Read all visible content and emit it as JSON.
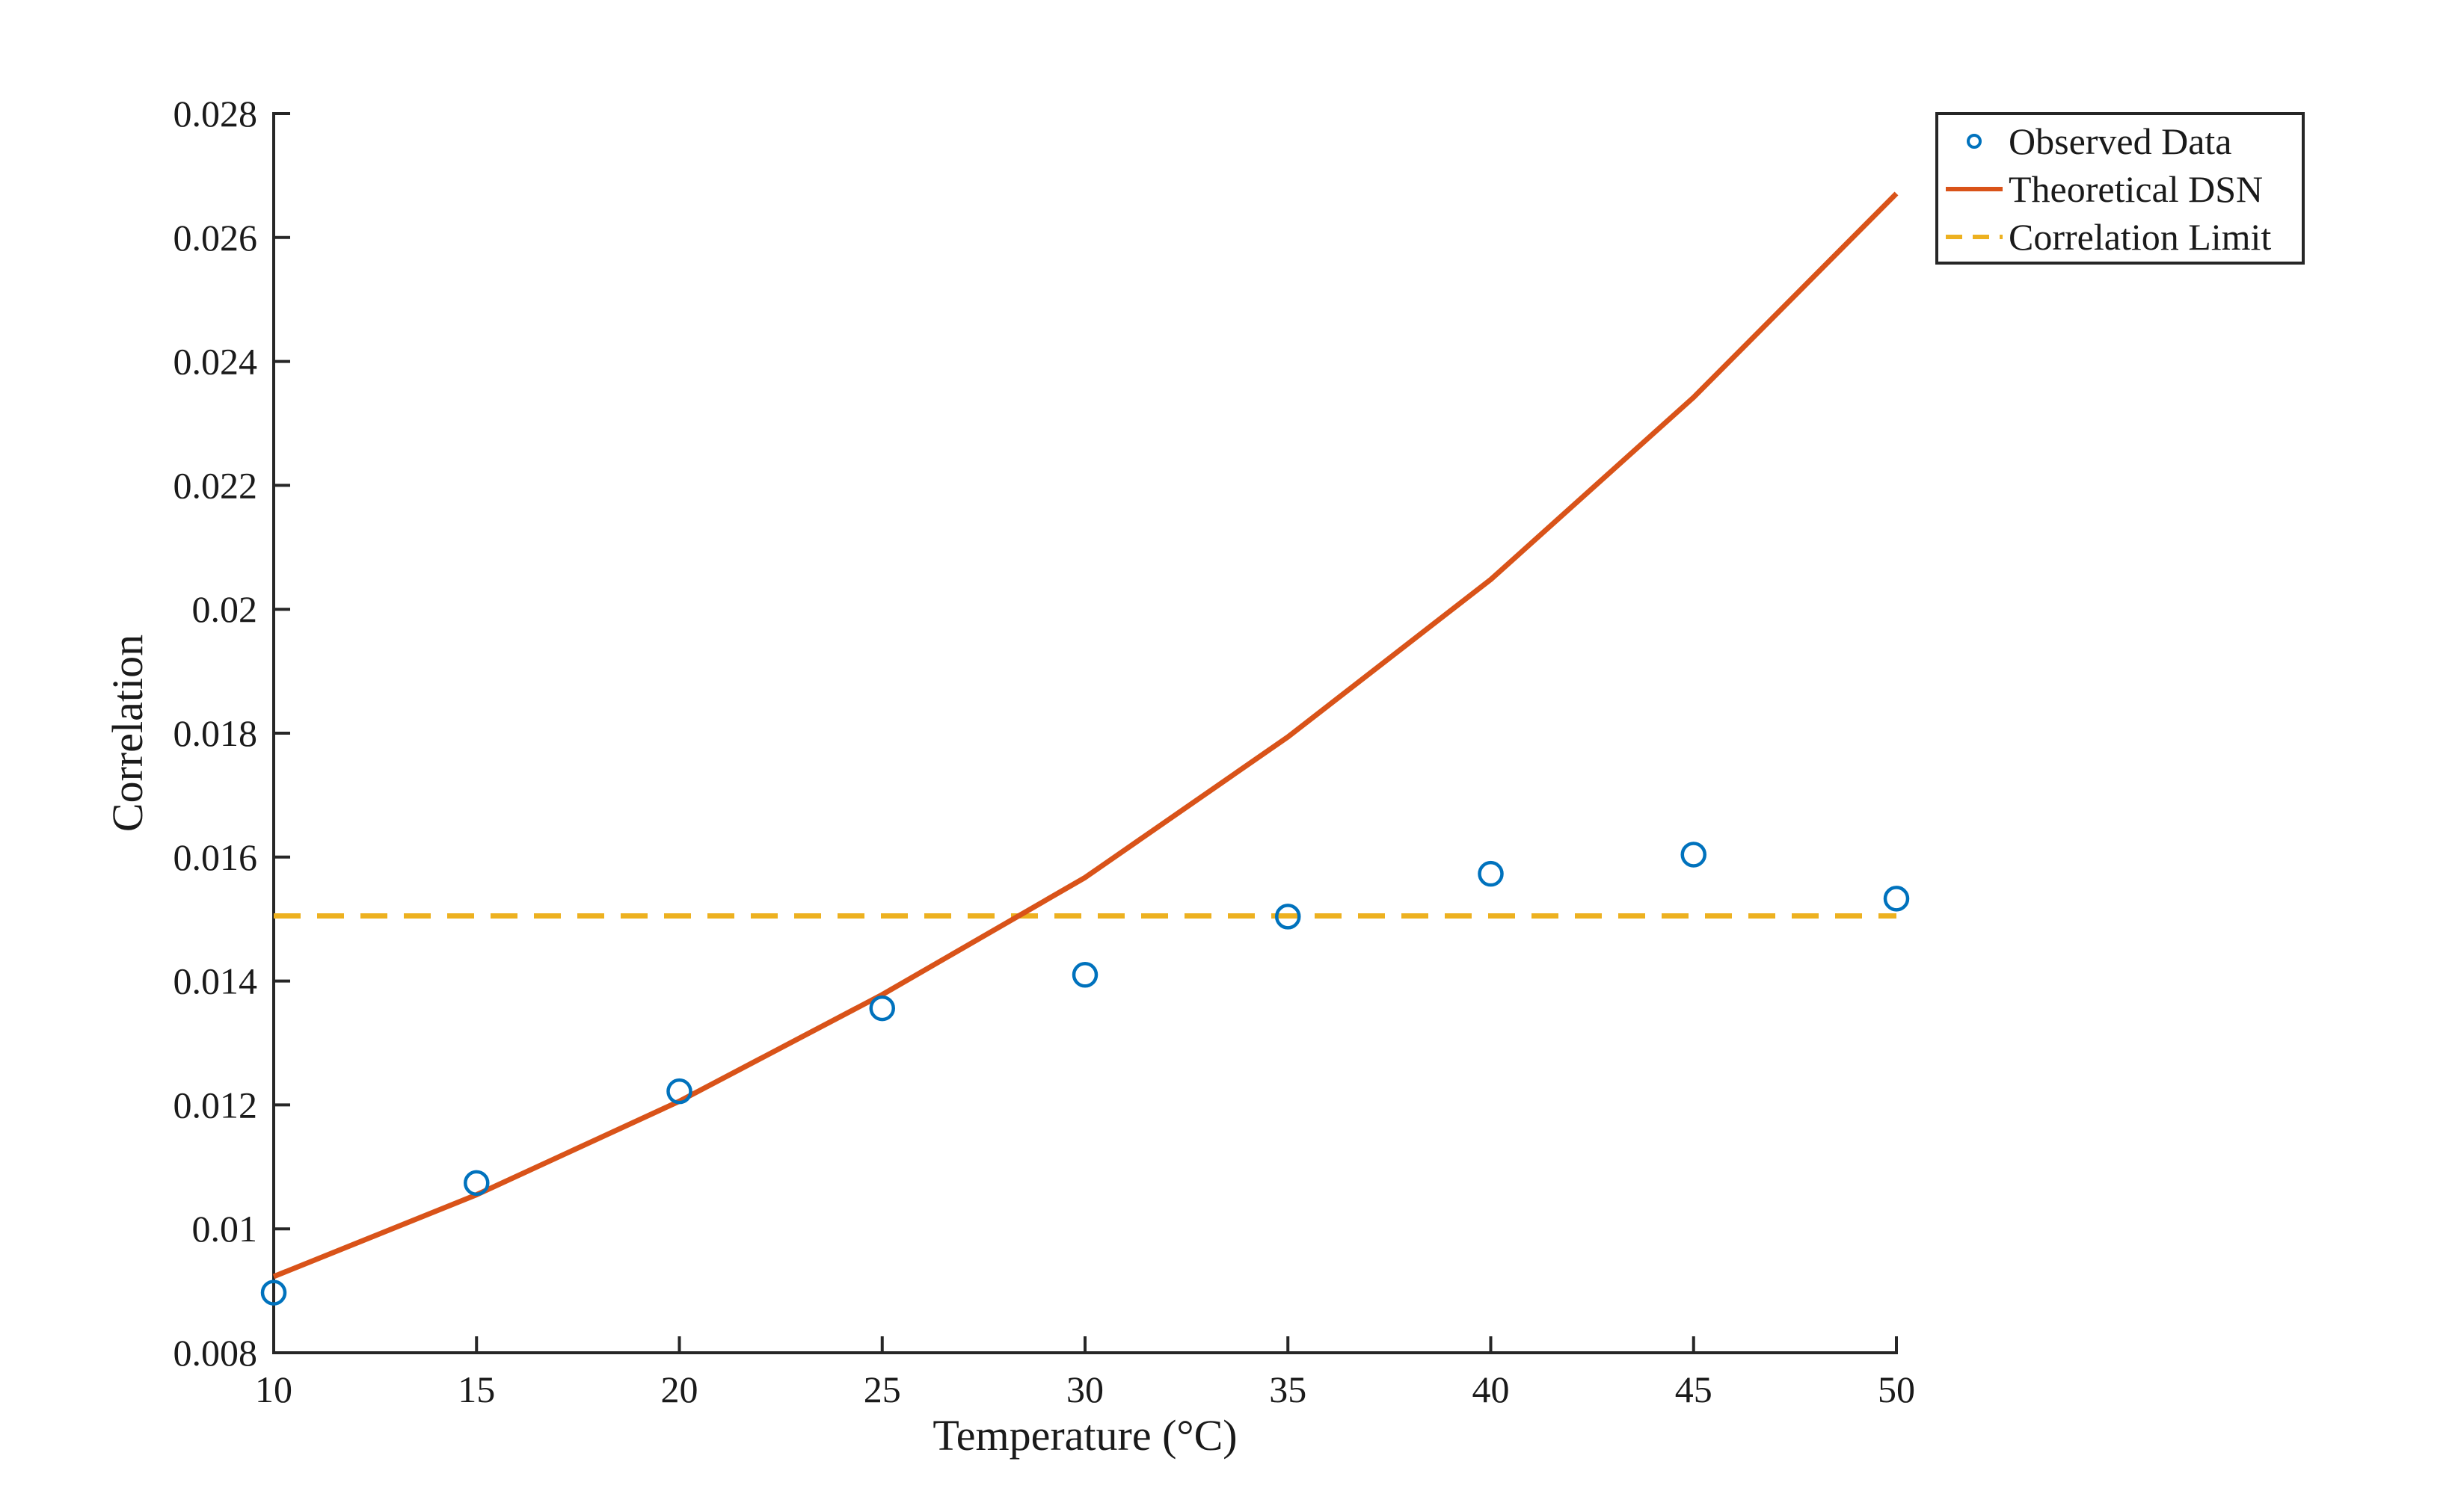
{
  "chart_data": {
    "type": "line",
    "xlabel": "Temperature (°C)",
    "ylabel": "Correlation",
    "xlim": [
      10,
      50
    ],
    "ylim": [
      0.008,
      0.028
    ],
    "xticks": [
      10,
      15,
      20,
      25,
      30,
      35,
      40,
      45,
      50
    ],
    "yticks": [
      0.008,
      0.01,
      0.012,
      0.014,
      0.016,
      0.018,
      0.02,
      0.022,
      0.024,
      0.026,
      0.028
    ],
    "xtick_labels": [
      "10",
      "15",
      "20",
      "25",
      "30",
      "35",
      "40",
      "45",
      "50"
    ],
    "ytick_labels": [
      "0.008",
      "0.01",
      "0.012",
      "0.014",
      "0.016",
      "0.018",
      "0.02",
      "0.022",
      "0.024",
      "0.026",
      "0.028"
    ],
    "grid": false,
    "legend_position": "top-right",
    "series": [
      {
        "name": "Observed Data",
        "style": "markers",
        "marker": "circle",
        "color": "#0072BD",
        "x": [
          10,
          15,
          20,
          25,
          30,
          35,
          40,
          45,
          50
        ],
        "y": [
          0.00897,
          0.01074,
          0.01222,
          0.01356,
          0.0141,
          0.01504,
          0.01573,
          0.01604,
          0.01533
        ]
      },
      {
        "name": "Theoretical DSN",
        "style": "solid",
        "color": "#D95319",
        "x": [
          10,
          15,
          20,
          25,
          30,
          35,
          40,
          45,
          50
        ],
        "y": [
          0.00923,
          0.01055,
          0.01206,
          0.01378,
          0.01567,
          0.01794,
          0.02048,
          0.02342,
          0.02671
        ]
      },
      {
        "name": "Correlation Limit",
        "style": "dashed",
        "color": "#EDB120",
        "x": [
          10,
          50
        ],
        "y": [
          0.01505,
          0.01505
        ]
      }
    ]
  }
}
